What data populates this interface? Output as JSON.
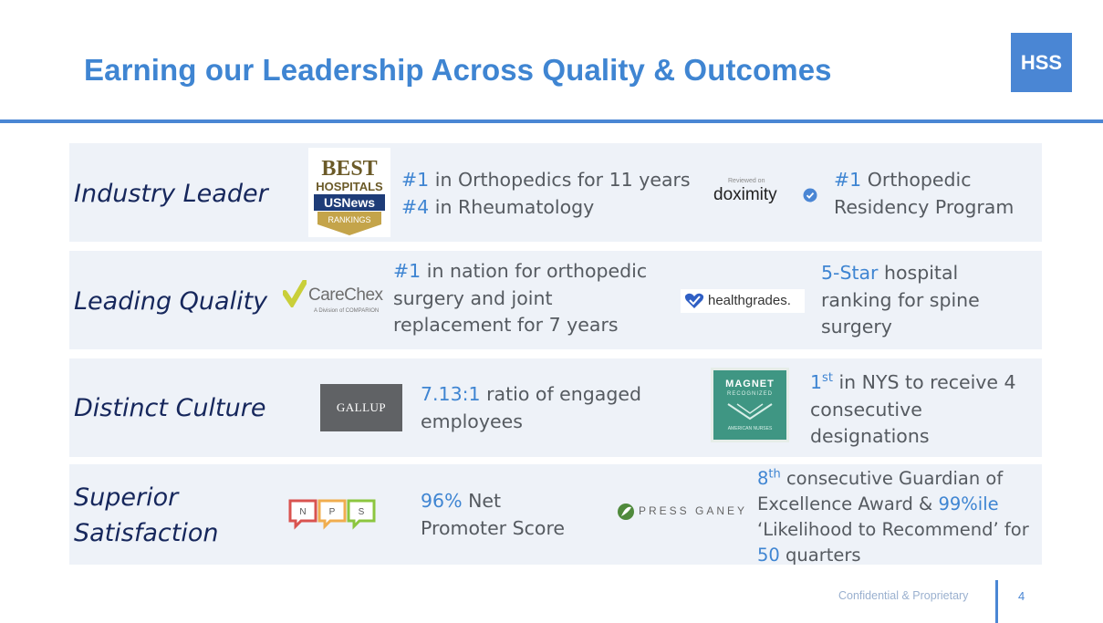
{
  "slide": {
    "title": "Earning our Leadership Across Quality & Outcomes",
    "brand_logo": "HSS",
    "footer": "Confidential & Proprietary",
    "page_number": "4"
  },
  "rows": [
    {
      "category": "Industry Leader",
      "logo1": {
        "top": "BEST",
        "mid": "HOSPITALS",
        "brand": "USNews",
        "band": "RANKINGS"
      },
      "text1_lines": [
        {
          "hl": "#1",
          "rest": " in Orthopedics for 11 years"
        },
        {
          "hl": "#4",
          "rest": " in Rheumatology"
        }
      ],
      "logo2": {
        "small": "Reviewed on",
        "brand": "doximity"
      },
      "text2_lines": [
        {
          "hl": "#1",
          "rest": " Orthopedic"
        },
        {
          "hl": "",
          "rest": "Residency Program"
        }
      ]
    },
    {
      "category": "Leading Quality",
      "logo1": {
        "brand": "CareChex",
        "sub": "A Division of COMPARION"
      },
      "text1_lines": [
        {
          "hl": "#1",
          "rest": " in nation for orthopedic"
        },
        {
          "hl": "",
          "rest": "surgery and joint"
        },
        {
          "hl": "",
          "rest": "replacement for 7 years"
        }
      ],
      "logo2": {
        "brand": "healthgrades."
      },
      "text2_lines": [
        {
          "hl": "5-Star",
          "rest": " hospital"
        },
        {
          "hl": "",
          "rest": "ranking for spine"
        },
        {
          "hl": "",
          "rest": "surgery"
        }
      ]
    },
    {
      "category": "Distinct Culture",
      "logo1": {
        "brand": "GALLUP"
      },
      "text1_lines": [
        {
          "hl": "7.13:1",
          "rest": " ratio of engaged"
        },
        {
          "hl": "",
          "rest": "employees"
        }
      ],
      "logo2": {
        "line1": "MAGNET",
        "line2": "RECOGNIZED",
        "line3": "AMERICAN NURSES"
      },
      "text2": {
        "hl": "1",
        "sup": "st",
        "rest": " in NYS to receive 4",
        "line2": " consecutive",
        "line3": "designations"
      }
    },
    {
      "category_line1": "Superior",
      "category_line2": "Satisfaction",
      "logo1": {
        "letters": [
          "N",
          "P",
          "S"
        ]
      },
      "text1": {
        "hl": "96%",
        "rest": "  Net",
        "line2": " Promoter Score"
      },
      "logo2": {
        "brand": "PRESS GANEY"
      },
      "text2": {
        "hl1": "8",
        "sup": "th",
        "rest1": "  consecutive Guardian of",
        "line2_a": " Excellence Award & ",
        "hl2": "99%ile",
        "line3": "‘Likelihood to Recommend’ for",
        "hl3": "50",
        "rest4": "  quarters"
      }
    }
  ],
  "colors": {
    "accent": "#3f85d2",
    "category": "#16275c",
    "body": "#555a60",
    "row_bg": "#eef2f8"
  }
}
